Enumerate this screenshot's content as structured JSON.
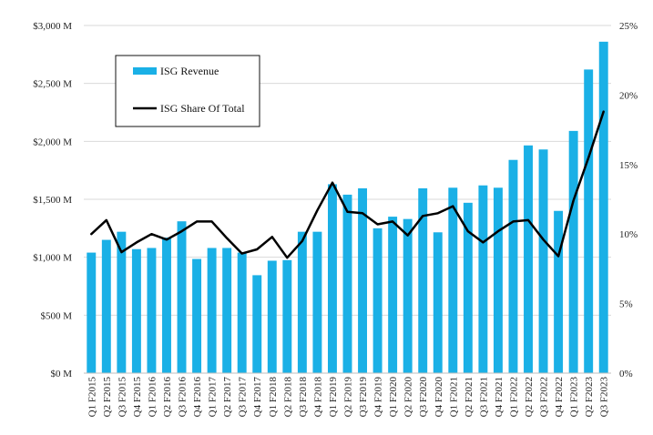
{
  "chart_data": {
    "type": "bar",
    "categories": [
      "Q1 F2015",
      "Q2 F2015",
      "Q3 F2015",
      "Q4 F2015",
      "Q1 F2016",
      "Q2 F2016",
      "Q3 F2016",
      "Q4 F2016",
      "Q1 F2017",
      "Q2 F2017",
      "Q3 F2017",
      "Q4 F2017",
      "Q1 F2018",
      "Q2 F2018",
      "Q3 F2018",
      "Q4 F2018",
      "Q1 F2019",
      "Q2 F2019",
      "Q3 F2019",
      "Q4 F2019",
      "Q1 F2020",
      "Q2 F2020",
      "Q3 F2020",
      "Q4 F2020",
      "Q1 F2021",
      "Q2 F2021",
      "Q3 F2021",
      "Q4 F2021",
      "Q1 F2022",
      "Q2 F2022",
      "Q3 F2022",
      "Q4 F2022",
      "Q1 F2023",
      "Q2 F2023",
      "Q3 F2023"
    ],
    "series": [
      {
        "name": "ISG Revenue",
        "chart": "bar",
        "axis": "left",
        "color": "#1ab0e6",
        "values": [
          1040,
          1150,
          1220,
          1070,
          1080,
          1170,
          1310,
          985,
          1080,
          1080,
          1040,
          845,
          970,
          975,
          1220,
          1220,
          1630,
          1540,
          1595,
          1250,
          1350,
          1330,
          1595,
          1215,
          1600,
          1470,
          1620,
          1600,
          1840,
          1965,
          1930,
          1400,
          2090,
          2620,
          2860
        ]
      },
      {
        "name": "ISG Share Of Total",
        "chart": "line",
        "axis": "right",
        "color": "#000000",
        "values": [
          10.0,
          11.0,
          8.7,
          9.4,
          10.0,
          9.6,
          10.2,
          10.9,
          10.9,
          9.7,
          8.6,
          8.9,
          9.8,
          8.3,
          9.5,
          11.7,
          13.7,
          11.6,
          11.5,
          10.7,
          10.9,
          9.9,
          11.3,
          11.5,
          12.0,
          10.2,
          9.4,
          10.2,
          10.9,
          11.0,
          9.6,
          8.4,
          12.4,
          15.5,
          18.8
        ]
      }
    ],
    "y_left": {
      "min": 0,
      "max": 3000,
      "ticks": [
        0,
        500,
        1000,
        1500,
        2000,
        2500,
        3000
      ],
      "tick_labels": [
        "$0 M",
        "$500 M",
        "$1,000 M",
        "$1,500 M",
        "$2,000 M",
        "$2,500 M",
        "$3,000 M"
      ]
    },
    "y_right": {
      "min": 0,
      "max": 25,
      "ticks": [
        0,
        5,
        10,
        15,
        20,
        25
      ],
      "tick_labels": [
        "0%",
        "5%",
        "10%",
        "15%",
        "20%",
        "25%"
      ]
    },
    "grid": true,
    "legend_placement": "top-left"
  }
}
